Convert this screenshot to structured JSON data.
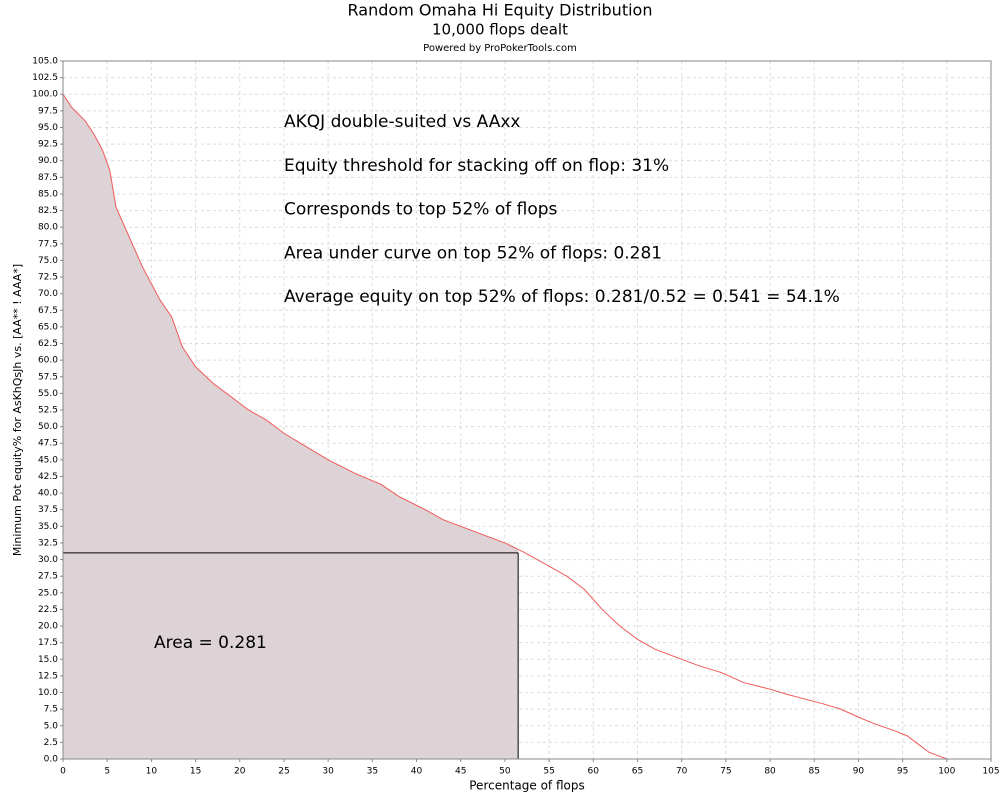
{
  "chart_data": {
    "type": "area-line",
    "title": "Random Omaha Hi Equity Distribution",
    "subtitle": "10,000 flops dealt",
    "credit": "Powered by ProPokerTools.com",
    "x_label": "Percentage of flops",
    "y_label": "Minimum Pot equity% for AsKhQsJh vs. [AA** ! AAA*]",
    "annotations": [
      "AKQJ double-suited vs AAxx",
      "Equity threshold for stacking off on flop: 31%",
      "Corresponds to top 52% of flops",
      "Area under curve on top 52% of flops: 0.281",
      "Average equity on top 52% of flops: 0.281/0.52 = 0.541 = 54.1%"
    ],
    "area_label": "Area = 0.281",
    "color": "#f05a5a",
    "fill": "#ddd3d6",
    "threshold": 31,
    "cutoff": 51.5,
    "x": [
      0,
      1,
      2.5,
      3.5,
      4.5,
      5.3,
      6,
      7,
      8,
      9,
      10,
      11,
      12.3,
      13.5,
      15,
      17,
      19,
      21,
      23,
      25,
      27.5,
      30,
      33,
      36,
      38,
      41,
      43,
      45,
      48,
      50,
      52,
      55,
      57,
      59,
      61,
      63,
      65,
      67,
      70,
      72,
      74.5,
      77,
      80,
      82,
      84,
      86,
      88,
      90,
      92,
      94,
      95.5,
      97,
      98,
      99,
      100
    ],
    "values": [
      100,
      98,
      96,
      94,
      91.5,
      88.5,
      83,
      80,
      77,
      74,
      71.5,
      69,
      66.5,
      62,
      59,
      56.5,
      54.5,
      52.5,
      51,
      49,
      47,
      45,
      43,
      41.3,
      39.5,
      37.5,
      36,
      35,
      33.5,
      32.5,
      31.2,
      29,
      27.5,
      25.5,
      22.5,
      20,
      18,
      16.5,
      15,
      14,
      13,
      11.5,
      10.5,
      9.7,
      9,
      8.3,
      7.5,
      6.3,
      5.2,
      4.3,
      3.5,
      2,
      1,
      0.5,
      0
    ],
    "xlim": [
      0,
      105
    ],
    "ylim": [
      0,
      105
    ],
    "xticks": [
      0,
      5,
      10,
      15,
      20,
      25,
      30,
      35,
      40,
      45,
      50,
      55,
      60,
      65,
      70,
      75,
      80,
      85,
      90,
      95,
      100,
      105
    ],
    "yticks": [
      {
        "value": 0,
        "label": "0.0"
      },
      {
        "value": 2.5,
        "label": "2.5"
      },
      {
        "value": 5,
        "label": "5.0"
      },
      {
        "value": 7.5,
        "label": "7.5"
      },
      {
        "value": 10,
        "label": "10.0"
      },
      {
        "value": 12.5,
        "label": "12.5"
      },
      {
        "value": 15,
        "label": "15.0"
      },
      {
        "value": 17.5,
        "label": "17.5"
      },
      {
        "value": 20,
        "label": "20.0"
      },
      {
        "value": 22.5,
        "label": "22.5"
      },
      {
        "value": 25,
        "label": "25.0"
      },
      {
        "value": 27.5,
        "label": "27.5"
      },
      {
        "value": 30,
        "label": "30.0"
      },
      {
        "value": 32.5,
        "label": "32.5"
      },
      {
        "value": 35,
        "label": "35.0"
      },
      {
        "value": 37.5,
        "label": "37.5"
      },
      {
        "value": 40,
        "label": "40.0"
      },
      {
        "value": 42.5,
        "label": "42.5"
      },
      {
        "value": 45,
        "label": "45.0"
      },
      {
        "value": 47.5,
        "label": "47.5"
      },
      {
        "value": 50,
        "label": "50.0"
      },
      {
        "value": 52.5,
        "label": "52.5"
      },
      {
        "value": 55,
        "label": "55.0"
      },
      {
        "value": 57.5,
        "label": "57.5"
      },
      {
        "value": 60,
        "label": "60.0"
      },
      {
        "value": 62.5,
        "label": "62.5"
      },
      {
        "value": 65,
        "label": "65.0"
      },
      {
        "value": 67.5,
        "label": "67.5"
      },
      {
        "value": 70,
        "label": "70.0"
      },
      {
        "value": 72.5,
        "label": "72.5"
      },
      {
        "value": 75,
        "label": "75.0"
      },
      {
        "value": 77.5,
        "label": "77.5"
      },
      {
        "value": 80,
        "label": "80.0"
      },
      {
        "value": 82.5,
        "label": "82.5"
      },
      {
        "value": 85,
        "label": "85.0"
      },
      {
        "value": 87.5,
        "label": "87.5"
      },
      {
        "value": 90,
        "label": "90.0"
      },
      {
        "value": 92.5,
        "label": "92.5"
      },
      {
        "value": 95,
        "label": "95.0"
      },
      {
        "value": 97.5,
        "label": "97.5"
      },
      {
        "value": 100,
        "label": "100.0"
      },
      {
        "value": 102.5,
        "label": "102.5"
      },
      {
        "value": 105,
        "label": "105.0"
      }
    ],
    "grid": true
  }
}
